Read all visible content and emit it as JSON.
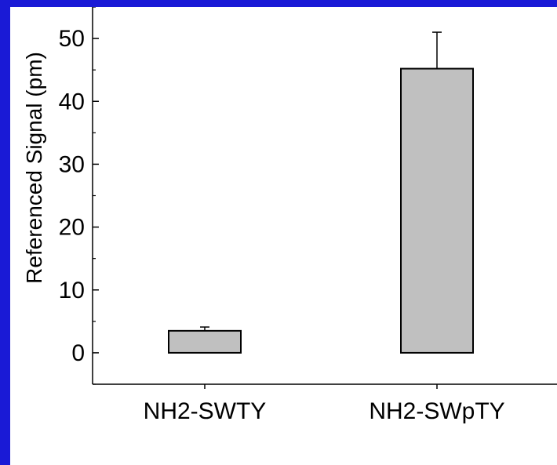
{
  "colors": {
    "frame": "#1a1ad6",
    "panel": "#ffffff",
    "bar_fill": "#c0c0c0",
    "bar_stroke": "#000000"
  },
  "chart_data": {
    "type": "bar",
    "categories": [
      "NH2-SWTY",
      "NH2-SWpTY"
    ],
    "values": [
      3.5,
      45.2
    ],
    "errors": [
      0.6,
      5.8
    ],
    "title": "",
    "xlabel": "",
    "ylabel": "Referenced Signal (pm)",
    "ylim": [
      -5,
      55
    ],
    "yticks": [
      0,
      10,
      20,
      30,
      40,
      50
    ],
    "grid": false
  }
}
